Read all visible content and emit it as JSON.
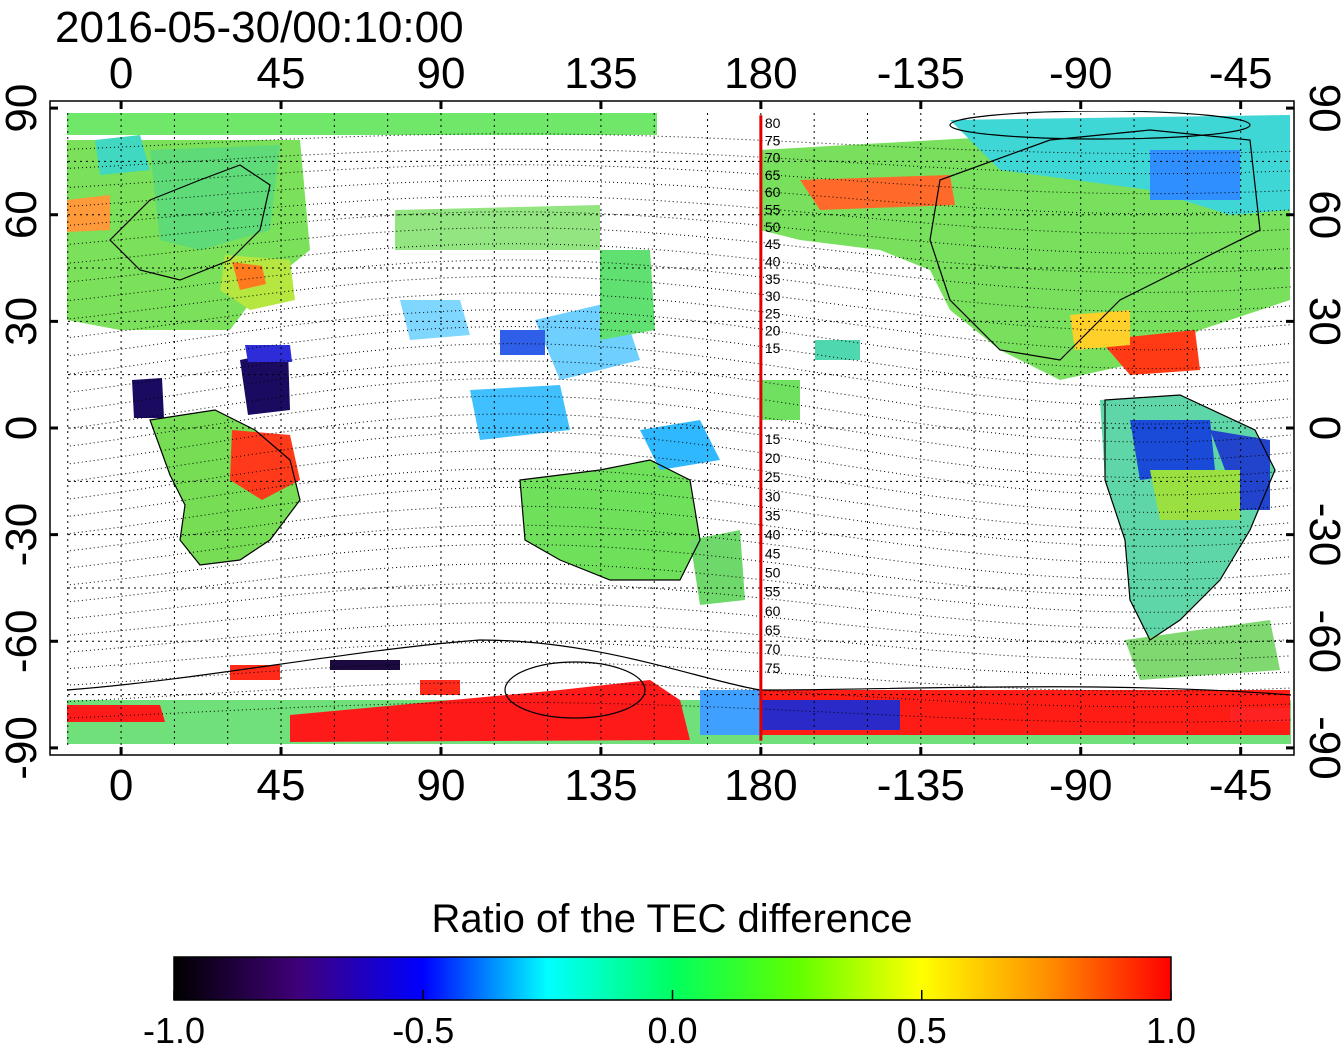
{
  "title": "2016-05-30/00:10:00",
  "map": {
    "top_lon_ticks": [
      "0",
      "45",
      "90",
      "135",
      "180",
      "-135",
      "-90",
      "-45"
    ],
    "bottom_lon_ticks": [
      "0",
      "45",
      "90",
      "135",
      "180",
      "-135",
      "-90",
      "-45"
    ],
    "left_lat_ticks": [
      "90",
      "60",
      "30",
      "0",
      "-30",
      "-60",
      "-90"
    ],
    "right_lat_ticks": [
      "90",
      "60",
      "30",
      "0",
      "-30",
      "-60",
      "-90"
    ],
    "lon_tick_values": [
      0,
      45,
      90,
      135,
      180,
      225,
      270,
      315
    ],
    "lat_tick_values": [
      90,
      60,
      30,
      0,
      -30,
      -60,
      -90
    ],
    "lon_range": [
      -20,
      330
    ],
    "lat_range": [
      -92,
      92
    ],
    "grid": "dotted, every 15 degrees",
    "meridian_marker_lon": 180,
    "meridian_marker_color": "#e00000",
    "north_contour_labels": [
      "80",
      "75",
      "70",
      "65",
      "60",
      "55",
      "50",
      "45",
      "40",
      "35",
      "30",
      "25",
      "20",
      "15"
    ],
    "south_contour_labels": [
      "15",
      "20",
      "25",
      "30",
      "35",
      "40",
      "45",
      "50",
      "55",
      "60",
      "65",
      "70",
      "75"
    ]
  },
  "colorbar": {
    "title": "Ratio of the TEC difference",
    "min": -1.0,
    "max": 1.0,
    "tick_labels": [
      "-1.0",
      "-0.5",
      "0.0",
      "0.5",
      "1.0"
    ],
    "tick_values": [
      -1.0,
      -0.5,
      0.0,
      0.5,
      1.0
    ],
    "colors": [
      "#000000",
      "#40007a",
      "#0000ff",
      "#00ffff",
      "#00ff60",
      "#60ff00",
      "#ffff00",
      "#ff9000",
      "#ff0000"
    ]
  }
}
